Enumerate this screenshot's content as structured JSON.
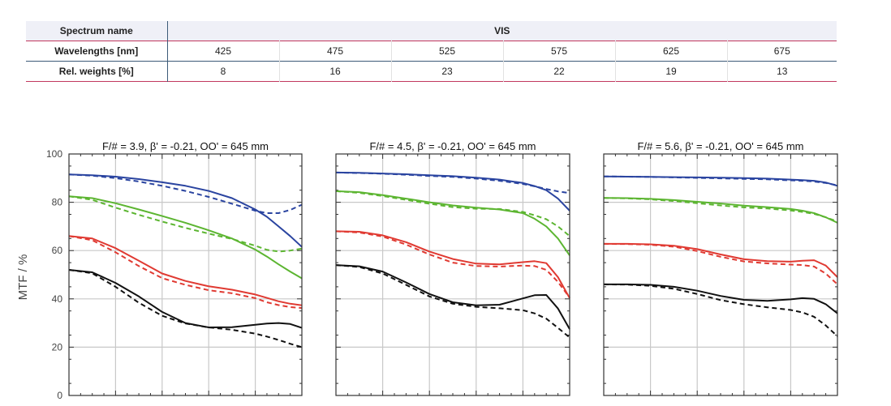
{
  "spectrum_table": {
    "rows": [
      {
        "header": "Spectrum name",
        "cells": [
          "VIS"
        ]
      },
      {
        "header": "Wavelengths [nm]",
        "cells": [
          "425",
          "475",
          "525",
          "575",
          "625",
          "675"
        ]
      },
      {
        "header": "Rel. weights [%]",
        "cells": [
          "8",
          "16",
          "23",
          "22",
          "19",
          "13"
        ]
      }
    ]
  },
  "colors": {
    "blue": "#2a44a0",
    "green": "#5cb531",
    "red": "#e03a32",
    "black": "#111111",
    "grid": "#c8c8c8",
    "frame": "#333333",
    "tick_text": "#444444",
    "table_red_rule": "#c1385f",
    "table_blue_rule": "#3c5a78",
    "table_head_bg": "#eff0f7"
  },
  "ylabel": "MTF / %",
  "chart_data": [
    {
      "type": "line",
      "title": "F/# = 3.9, β' = -0.21, OO' = 645 mm",
      "ylabel": "MTF / %",
      "ylim": [
        0,
        100
      ],
      "yticks": [
        0,
        20,
        40,
        60,
        80,
        100
      ],
      "xlim": [
        0,
        1
      ],
      "grid": true,
      "series": [
        {
          "color": "blue",
          "style": "solid",
          "x": [
            0,
            0.1,
            0.2,
            0.3,
            0.4,
            0.5,
            0.6,
            0.7,
            0.8,
            0.85,
            0.9,
            0.95,
            1.0
          ],
          "y": [
            91.5,
            91.2,
            90.6,
            89.6,
            88.3,
            86.8,
            84.7,
            81.7,
            77.0,
            74.0,
            70.0,
            66.0,
            61.5
          ]
        },
        {
          "color": "blue",
          "style": "dashed",
          "x": [
            0,
            0.1,
            0.2,
            0.3,
            0.4,
            0.5,
            0.6,
            0.7,
            0.8,
            0.85,
            0.9,
            0.95,
            1.0
          ],
          "y": [
            91.5,
            91.0,
            90.0,
            88.6,
            86.8,
            84.7,
            82.2,
            79.4,
            76.5,
            75.5,
            75.5,
            76.8,
            79.0
          ]
        },
        {
          "color": "green",
          "style": "solid",
          "x": [
            0,
            0.1,
            0.2,
            0.3,
            0.4,
            0.5,
            0.6,
            0.7,
            0.8,
            0.85,
            0.9,
            0.95,
            1.0
          ],
          "y": [
            82.5,
            81.7,
            79.6,
            77.0,
            74.3,
            71.5,
            68.4,
            65.0,
            60.4,
            57.5,
            54.3,
            51.3,
            48.5
          ]
        },
        {
          "color": "green",
          "style": "dashed",
          "x": [
            0,
            0.1,
            0.2,
            0.3,
            0.4,
            0.5,
            0.6,
            0.7,
            0.8,
            0.85,
            0.9,
            0.95,
            1.0
          ],
          "y": [
            82.5,
            81.0,
            77.8,
            74.8,
            72.0,
            69.4,
            67.0,
            64.8,
            62.0,
            60.3,
            59.6,
            60.0,
            60.8
          ]
        },
        {
          "color": "red",
          "style": "solid",
          "x": [
            0,
            0.1,
            0.2,
            0.3,
            0.4,
            0.5,
            0.6,
            0.7,
            0.8,
            0.85,
            0.9,
            0.95,
            1.0
          ],
          "y": [
            66.0,
            65.0,
            61.0,
            55.8,
            50.5,
            47.4,
            45.2,
            43.8,
            41.8,
            40.4,
            39.0,
            38.0,
            37.3
          ]
        },
        {
          "color": "red",
          "style": "dashed",
          "x": [
            0,
            0.1,
            0.2,
            0.3,
            0.4,
            0.5,
            0.6,
            0.7,
            0.8,
            0.85,
            0.9,
            0.95,
            1.0
          ],
          "y": [
            66.0,
            64.3,
            59.3,
            53.6,
            48.6,
            45.8,
            43.6,
            42.3,
            40.3,
            38.6,
            37.4,
            36.6,
            36.2
          ]
        },
        {
          "color": "black",
          "style": "solid",
          "x": [
            0,
            0.1,
            0.2,
            0.3,
            0.4,
            0.5,
            0.6,
            0.7,
            0.8,
            0.85,
            0.9,
            0.95,
            1.0
          ],
          "y": [
            52.0,
            51.0,
            46.6,
            41.0,
            34.6,
            30.0,
            28.2,
            28.3,
            29.3,
            29.8,
            30.0,
            29.6,
            28.0
          ]
        },
        {
          "color": "black",
          "style": "dashed",
          "x": [
            0,
            0.1,
            0.2,
            0.3,
            0.4,
            0.5,
            0.6,
            0.7,
            0.8,
            0.85,
            0.9,
            0.95,
            1.0
          ],
          "y": [
            52.0,
            50.6,
            45.0,
            38.4,
            33.0,
            29.8,
            28.2,
            27.2,
            25.6,
            24.4,
            23.0,
            21.4,
            20.0
          ]
        }
      ]
    },
    {
      "type": "line",
      "title": "F/# = 4.5, β' = -0.21, OO' = 645 mm",
      "ylabel": "MTF / %",
      "ylim": [
        0,
        100
      ],
      "yticks": [
        0,
        20,
        40,
        60,
        80,
        100
      ],
      "xlim": [
        0,
        1
      ],
      "grid": true,
      "series": [
        {
          "color": "blue",
          "style": "solid",
          "x": [
            0,
            0.1,
            0.2,
            0.3,
            0.4,
            0.5,
            0.6,
            0.7,
            0.8,
            0.85,
            0.9,
            0.95,
            1.0
          ],
          "y": [
            92.3,
            92.2,
            91.9,
            91.6,
            91.2,
            90.8,
            90.2,
            89.4,
            88.0,
            86.7,
            85.0,
            81.5,
            76.5
          ]
        },
        {
          "color": "blue",
          "style": "dashed",
          "x": [
            0,
            0.1,
            0.2,
            0.3,
            0.4,
            0.5,
            0.6,
            0.7,
            0.8,
            0.85,
            0.9,
            0.95,
            1.0
          ],
          "y": [
            92.3,
            92.1,
            91.8,
            91.4,
            90.9,
            90.5,
            89.8,
            88.9,
            87.6,
            86.6,
            85.5,
            84.5,
            83.8
          ]
        },
        {
          "color": "green",
          "style": "solid",
          "x": [
            0,
            0.1,
            0.2,
            0.3,
            0.4,
            0.5,
            0.6,
            0.7,
            0.8,
            0.85,
            0.9,
            0.95,
            1.0
          ],
          "y": [
            84.6,
            84.2,
            83.0,
            81.5,
            80.0,
            78.7,
            77.8,
            77.0,
            75.5,
            73.2,
            70.0,
            65.0,
            58.0
          ]
        },
        {
          "color": "green",
          "style": "dashed",
          "x": [
            0,
            0.1,
            0.2,
            0.3,
            0.4,
            0.5,
            0.6,
            0.7,
            0.8,
            0.85,
            0.9,
            0.95,
            1.0
          ],
          "y": [
            84.6,
            83.9,
            82.6,
            81.0,
            79.4,
            78.0,
            77.3,
            77.2,
            76.0,
            74.6,
            73.0,
            70.0,
            66.0
          ]
        },
        {
          "color": "red",
          "style": "solid",
          "x": [
            0,
            0.1,
            0.2,
            0.3,
            0.4,
            0.5,
            0.6,
            0.7,
            0.8,
            0.85,
            0.9,
            0.95,
            1.0
          ],
          "y": [
            68.0,
            67.8,
            66.3,
            63.5,
            59.6,
            56.5,
            54.6,
            54.3,
            55.2,
            55.6,
            54.8,
            49.0,
            40.3
          ]
        },
        {
          "color": "red",
          "style": "dashed",
          "x": [
            0,
            0.1,
            0.2,
            0.3,
            0.4,
            0.5,
            0.6,
            0.7,
            0.8,
            0.85,
            0.9,
            0.95,
            1.0
          ],
          "y": [
            68.0,
            67.5,
            65.8,
            62.5,
            58.4,
            55.0,
            53.6,
            53.4,
            53.8,
            53.6,
            52.0,
            47.0,
            40.5
          ]
        },
        {
          "color": "black",
          "style": "solid",
          "x": [
            0,
            0.1,
            0.2,
            0.3,
            0.4,
            0.5,
            0.6,
            0.7,
            0.8,
            0.85,
            0.9,
            0.95,
            1.0
          ],
          "y": [
            54.0,
            53.5,
            51.3,
            46.8,
            42.0,
            38.6,
            37.3,
            37.6,
            40.2,
            41.5,
            41.6,
            36.0,
            27.5
          ]
        },
        {
          "color": "black",
          "style": "dashed",
          "x": [
            0,
            0.1,
            0.2,
            0.3,
            0.4,
            0.5,
            0.6,
            0.7,
            0.8,
            0.85,
            0.9,
            0.95,
            1.0
          ],
          "y": [
            54.0,
            53.2,
            50.5,
            45.8,
            41.0,
            38.0,
            36.7,
            36.1,
            35.3,
            34.0,
            31.8,
            28.0,
            24.0
          ]
        }
      ]
    },
    {
      "type": "line",
      "title": "F/# = 5.6, β' = -0.21, OO' = 645 mm",
      "ylabel": "MTF / %",
      "ylim": [
        0,
        100
      ],
      "yticks": [
        0,
        20,
        40,
        60,
        80,
        100
      ],
      "xlim": [
        0,
        1
      ],
      "grid": true,
      "series": [
        {
          "color": "blue",
          "style": "solid",
          "x": [
            0,
            0.1,
            0.2,
            0.3,
            0.4,
            0.5,
            0.6,
            0.7,
            0.8,
            0.85,
            0.9,
            0.95,
            1.0
          ],
          "y": [
            90.7,
            90.6,
            90.5,
            90.4,
            90.3,
            90.2,
            90.0,
            89.8,
            89.4,
            89.2,
            88.9,
            88.2,
            86.8
          ]
        },
        {
          "color": "blue",
          "style": "dashed",
          "x": [
            0,
            0.1,
            0.2,
            0.3,
            0.4,
            0.5,
            0.6,
            0.7,
            0.8,
            0.85,
            0.9,
            0.95,
            1.0
          ],
          "y": [
            90.7,
            90.6,
            90.5,
            90.3,
            90.1,
            89.9,
            89.7,
            89.5,
            89.1,
            88.9,
            88.6,
            88.0,
            87.0
          ]
        },
        {
          "color": "green",
          "style": "solid",
          "x": [
            0,
            0.1,
            0.2,
            0.3,
            0.4,
            0.5,
            0.6,
            0.7,
            0.8,
            0.85,
            0.9,
            0.95,
            1.0
          ],
          "y": [
            81.8,
            81.7,
            81.4,
            80.9,
            80.2,
            79.5,
            78.6,
            78.0,
            77.2,
            76.5,
            75.5,
            73.8,
            71.5
          ]
        },
        {
          "color": "green",
          "style": "dashed",
          "x": [
            0,
            0.1,
            0.2,
            0.3,
            0.4,
            0.5,
            0.6,
            0.7,
            0.8,
            0.85,
            0.9,
            0.95,
            1.0
          ],
          "y": [
            81.8,
            81.6,
            81.2,
            80.5,
            79.6,
            78.7,
            77.9,
            77.4,
            76.6,
            76.0,
            75.2,
            73.8,
            72.0
          ]
        },
        {
          "color": "red",
          "style": "solid",
          "x": [
            0,
            0.1,
            0.2,
            0.3,
            0.4,
            0.5,
            0.6,
            0.7,
            0.8,
            0.85,
            0.9,
            0.95,
            1.0
          ],
          "y": [
            62.8,
            62.8,
            62.6,
            62.0,
            60.6,
            58.4,
            56.4,
            55.6,
            55.4,
            55.8,
            56.0,
            53.8,
            49.0
          ]
        },
        {
          "color": "red",
          "style": "dashed",
          "x": [
            0,
            0.1,
            0.2,
            0.3,
            0.4,
            0.5,
            0.6,
            0.7,
            0.8,
            0.85,
            0.9,
            0.95,
            1.0
          ],
          "y": [
            62.8,
            62.7,
            62.4,
            61.6,
            59.8,
            57.4,
            55.5,
            54.7,
            54.2,
            54.0,
            53.4,
            50.5,
            46.0
          ]
        },
        {
          "color": "black",
          "style": "solid",
          "x": [
            0,
            0.1,
            0.2,
            0.3,
            0.4,
            0.5,
            0.6,
            0.7,
            0.8,
            0.85,
            0.9,
            0.95,
            1.0
          ],
          "y": [
            46.0,
            46.0,
            45.8,
            45.0,
            43.4,
            41.2,
            39.6,
            39.2,
            39.8,
            40.3,
            40.0,
            37.8,
            34.0
          ]
        },
        {
          "color": "black",
          "style": "dashed",
          "x": [
            0,
            0.1,
            0.2,
            0.3,
            0.4,
            0.5,
            0.6,
            0.7,
            0.8,
            0.85,
            0.9,
            0.95,
            1.0
          ],
          "y": [
            46.0,
            45.9,
            45.4,
            44.2,
            42.0,
            39.5,
            37.8,
            36.5,
            35.4,
            34.4,
            32.6,
            29.0,
            24.5
          ]
        }
      ]
    }
  ]
}
